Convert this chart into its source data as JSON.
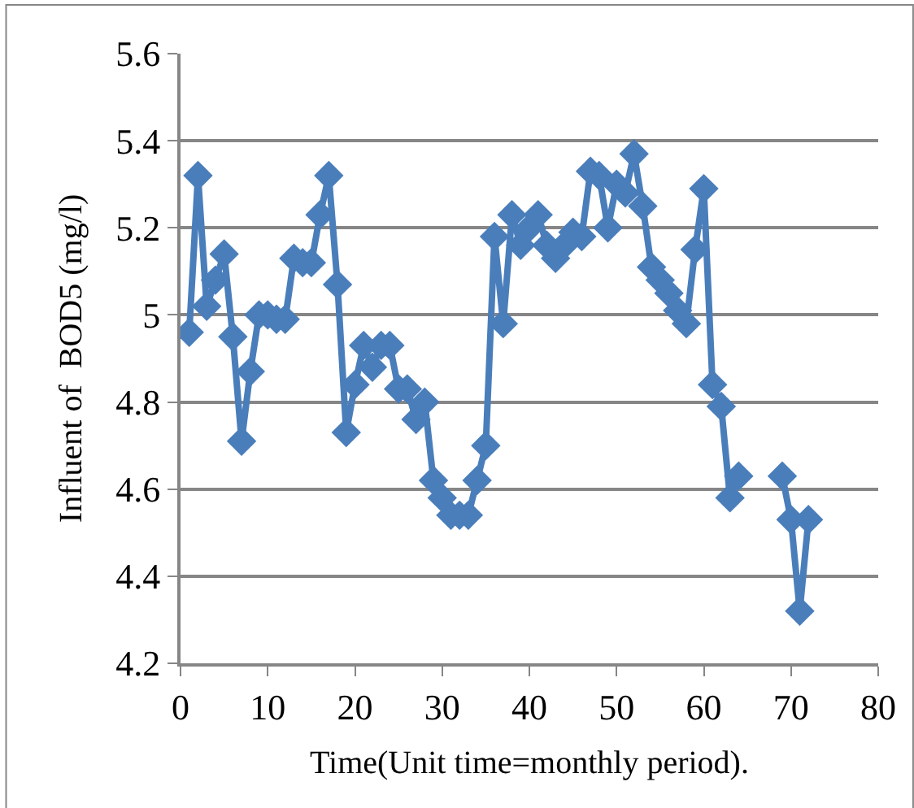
{
  "chart_data": {
    "type": "line",
    "xlabel": "Time(Unit time=monthly period).",
    "ylabel": "Influent of  BOD5 (mg/l)",
    "x": [
      1,
      2,
      3,
      4,
      5,
      6,
      7,
      8,
      9,
      10,
      11,
      12,
      13,
      14,
      15,
      16,
      17,
      18,
      19,
      20,
      21,
      22,
      23,
      24,
      25,
      26,
      27,
      28,
      29,
      30,
      31,
      32,
      33,
      34,
      35,
      36,
      37,
      38,
      39,
      40,
      41,
      42,
      43,
      44,
      45,
      46,
      47,
      48,
      49,
      50,
      51,
      52,
      53,
      54,
      55,
      56,
      57,
      58,
      59,
      60,
      61,
      62,
      63,
      64,
      65,
      66,
      67,
      68,
      69,
      70,
      71,
      72
    ],
    "series": [
      {
        "color": "#4a7ebb",
        "values": [
          4.96,
          5.32,
          5.02,
          5.08,
          5.14,
          4.95,
          4.71,
          4.87,
          5.0,
          5.0,
          4.99,
          4.99,
          5.13,
          5.12,
          5.12,
          5.23,
          5.32,
          5.07,
          4.73,
          4.84,
          4.93,
          4.88,
          4.93,
          4.93,
          4.83,
          4.83,
          4.76,
          4.8,
          4.62,
          4.58,
          4.54,
          4.54,
          4.54,
          4.62,
          4.7,
          5.18,
          4.98,
          5.23,
          5.16,
          5.2,
          5.23,
          5.16,
          5.13,
          5.16,
          5.19,
          5.18,
          5.33,
          5.32,
          5.2,
          5.3,
          5.28,
          5.37,
          5.25,
          5.11,
          5.08,
          5.05,
          5.01,
          4.98,
          5.15,
          5.29,
          4.84,
          4.79,
          4.58,
          4.63,
          null,
          null,
          null,
          null,
          4.63,
          4.53,
          4.32,
          4.53
        ]
      }
    ],
    "xlim": [
      0,
      80
    ],
    "xticks": [
      0,
      10,
      20,
      30,
      40,
      50,
      60,
      70,
      80
    ],
    "ylim": [
      4.2,
      5.6
    ],
    "yticks": [
      {
        "value": 4.2,
        "label": "4.2"
      },
      {
        "value": 4.4,
        "label": "4.4"
      },
      {
        "value": 4.6,
        "label": "4.6"
      },
      {
        "value": 4.8,
        "label": "4.8"
      },
      {
        "value": 5.0,
        "label": "5"
      },
      {
        "value": 5.2,
        "label": "5.2"
      },
      {
        "value": 5.4,
        "label": "5.4"
      },
      {
        "value": 5.6,
        "label": "5.6"
      }
    ],
    "grid": "y",
    "marker": "diamond",
    "line_style": "solid"
  }
}
